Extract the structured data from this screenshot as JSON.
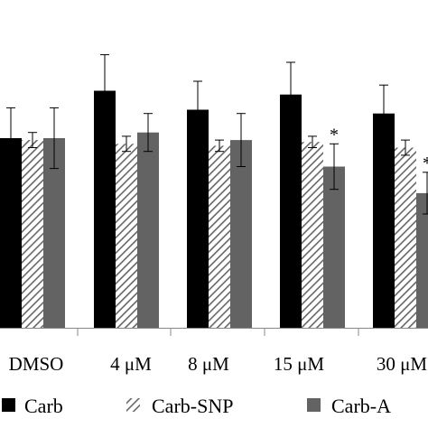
{
  "chart_data": {
    "type": "bar",
    "categories": [
      "DMSO",
      "4 μM",
      "8 μM",
      "15 μM",
      "30 μM"
    ],
    "series": [
      {
        "name": "Carb",
        "values": [
          1.0,
          1.25,
          1.15,
          1.23,
          1.13
        ],
        "errors": [
          0.16,
          0.19,
          0.15,
          0.17,
          0.15
        ],
        "color": "#000000",
        "pattern": "solid"
      },
      {
        "name": "Carb-SNP",
        "values": [
          0.99,
          0.97,
          0.96,
          0.98,
          0.95
        ],
        "errors": [
          0.04,
          0.04,
          0.03,
          0.03,
          0.04
        ],
        "color": "#666666",
        "pattern": "hatch"
      },
      {
        "name": "Carb-A",
        "values": [
          1.0,
          1.03,
          0.99,
          0.85,
          0.71
        ],
        "errors": [
          0.16,
          0.1,
          0.14,
          0.12,
          0.11
        ],
        "color": "#636363",
        "pattern": "solid",
        "annotations": [
          "",
          "",
          "",
          "*",
          "*"
        ]
      }
    ],
    "title": "",
    "xlabel": "",
    "ylabel": "",
    "ylim": [
      0,
      1.5
    ],
    "grid": false,
    "legend_position": "bottom"
  }
}
